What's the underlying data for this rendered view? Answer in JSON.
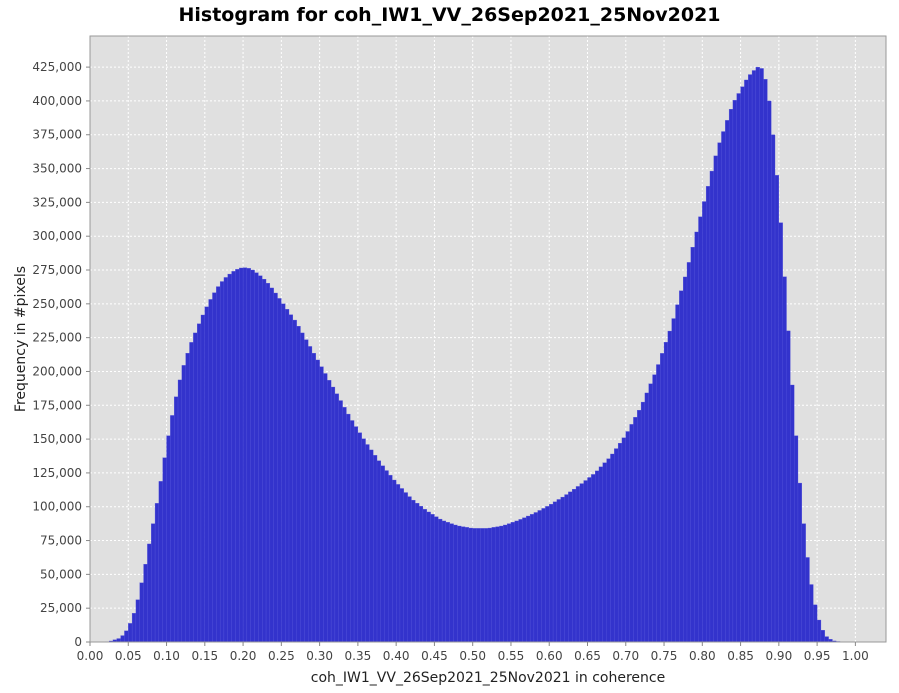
{
  "chart_data": {
    "type": "bar",
    "title": "Histogram for coh_IW1_VV_26Sep2021_25Nov2021",
    "xlabel": "coh_IW1_VV_26Sep2021_25Nov2021 in coherence",
    "ylabel": "Frequency in #pixels",
    "xlim": [
      0.0,
      1.04
    ],
    "ylim": [
      0,
      448000
    ],
    "x_ticks": [
      "0.00",
      "0.05",
      "0.10",
      "0.15",
      "0.20",
      "0.25",
      "0.30",
      "0.35",
      "0.40",
      "0.45",
      "0.50",
      "0.55",
      "0.60",
      "0.65",
      "0.70",
      "0.75",
      "0.80",
      "0.85",
      "0.90",
      "0.95",
      "1.00"
    ],
    "y_ticks": [
      "0",
      "25,000",
      "50,000",
      "75,000",
      "100,000",
      "125,000",
      "150,000",
      "175,000",
      "200,000",
      "225,000",
      "250,000",
      "275,000",
      "300,000",
      "325,000",
      "350,000",
      "375,000",
      "400,000",
      "425,000"
    ],
    "bin_range": [
      0.0,
      1.0
    ],
    "bin_count": 200,
    "x": [
      0.0,
      0.025,
      0.04,
      0.05,
      0.06,
      0.07,
      0.08,
      0.09,
      0.1,
      0.11,
      0.12,
      0.13,
      0.14,
      0.15,
      0.16,
      0.17,
      0.18,
      0.19,
      0.2,
      0.21,
      0.22,
      0.23,
      0.24,
      0.25,
      0.26,
      0.27,
      0.28,
      0.3,
      0.32,
      0.34,
      0.36,
      0.38,
      0.4,
      0.42,
      0.44,
      0.46,
      0.48,
      0.5,
      0.52,
      0.54,
      0.56,
      0.58,
      0.6,
      0.62,
      0.64,
      0.66,
      0.68,
      0.7,
      0.72,
      0.74,
      0.76,
      0.78,
      0.8,
      0.82,
      0.84,
      0.86,
      0.87,
      0.875,
      0.88,
      0.885,
      0.89,
      0.9,
      0.91,
      0.92,
      0.93,
      0.94,
      0.95,
      0.96,
      0.97,
      0.98,
      0.99,
      1.0
    ],
    "y": [
      0,
      300,
      3000,
      10000,
      25000,
      50000,
      80000,
      110000,
      145000,
      175000,
      200000,
      218000,
      232000,
      245000,
      256000,
      265000,
      271000,
      275000,
      277000,
      276000,
      272000,
      267000,
      260000,
      252000,
      244000,
      236000,
      226000,
      206000,
      186000,
      166000,
      148000,
      132000,
      118000,
      106000,
      97000,
      90000,
      86000,
      84000,
      84000,
      86000,
      90000,
      95000,
      101000,
      108000,
      116000,
      125000,
      137000,
      153000,
      174000,
      201000,
      234000,
      275000,
      320000,
      365000,
      398000,
      418000,
      424000,
      426000,
      422000,
      410000,
      390000,
      330000,
      250000,
      170000,
      100000,
      50000,
      20000,
      5000,
      1000,
      200,
      50,
      0
    ],
    "bar_color": "#3333cc",
    "grid": true,
    "legend": "none"
  }
}
